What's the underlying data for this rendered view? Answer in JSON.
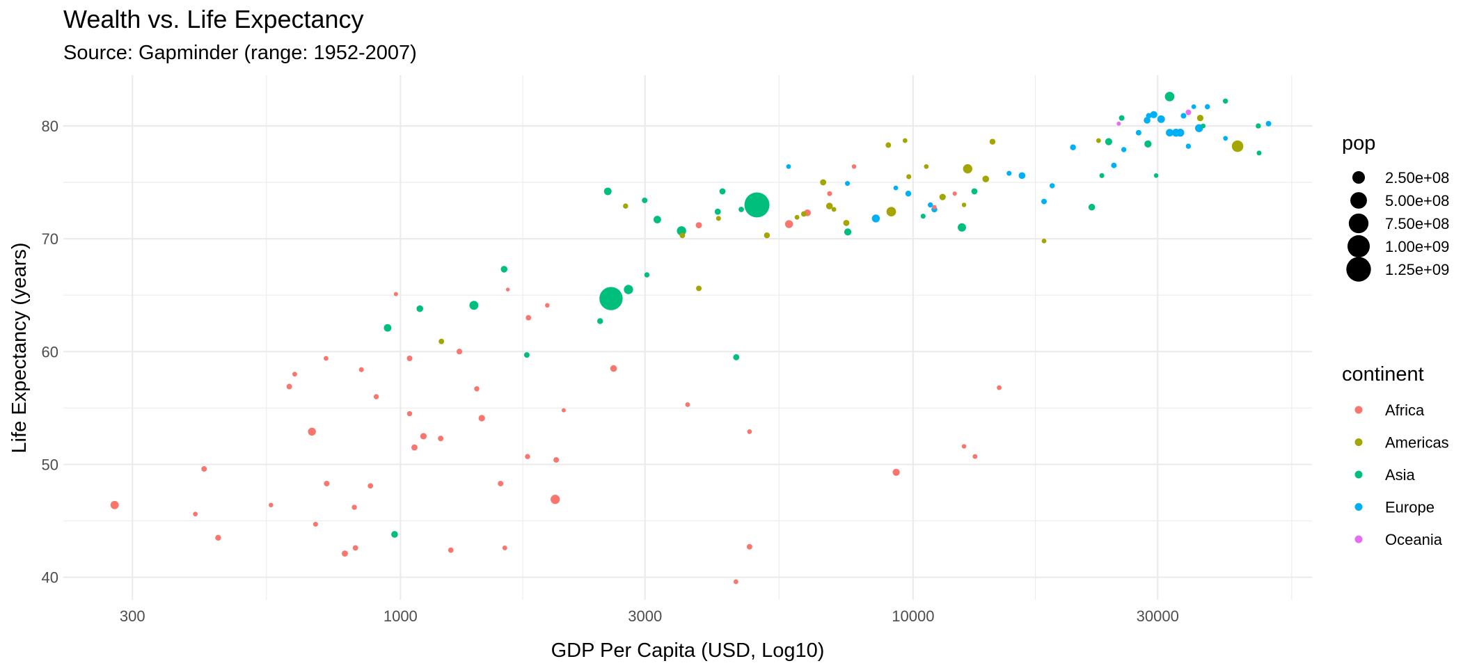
{
  "chart_data": {
    "type": "scatter",
    "title": "Wealth vs. Life Expectancy",
    "subtitle": "Source: Gapminder (range: 1952-2007)",
    "xlabel": "GDP Per Capita (USD, Log10)",
    "ylabel": "Life Expectancy (years)",
    "x_scale": "log10",
    "xlim": [
      220,
      60000
    ],
    "ylim": [
      38,
      84.5
    ],
    "x_ticks": [
      300,
      1000,
      3000,
      10000,
      30000
    ],
    "x_tick_labels": [
      "300",
      "1000",
      "3000",
      "10000",
      "30000"
    ],
    "y_ticks": [
      40,
      50,
      60,
      70,
      80
    ],
    "y_tick_labels": [
      "40",
      "50",
      "60",
      "70",
      "80"
    ],
    "grid": true,
    "legend_position": "right",
    "size_legend": {
      "title": "pop",
      "values": [
        250000000,
        500000000,
        750000000,
        1000000000,
        1250000000
      ],
      "labels": [
        "2.50e+08",
        "5.00e+08",
        "7.50e+08",
        "1.00e+09",
        "1.25e+09"
      ]
    },
    "color_legend": {
      "title": "continent",
      "entries": [
        {
          "name": "Africa",
          "color": "#F8766D"
        },
        {
          "name": "Americas",
          "color": "#A3A500"
        },
        {
          "name": "Asia",
          "color": "#00BF7D"
        },
        {
          "name": "Europe",
          "color": "#00B0F6"
        },
        {
          "name": "Oceania",
          "color": "#E76BF3"
        }
      ]
    },
    "series": [
      {
        "name": "Africa",
        "color": "#F8766D",
        "points": [
          [
            277,
            46.4,
            80000000
          ],
          [
            414,
            49.6,
            20000000
          ],
          [
            398,
            45.6,
            10000000
          ],
          [
            441,
            43.5,
            25000000
          ],
          [
            559,
            46.4,
            8000000
          ],
          [
            607,
            56.9,
            20000000
          ],
          [
            622,
            58.0,
            10000000
          ],
          [
            672,
            52.9,
            70000000
          ],
          [
            683,
            44.7,
            12000000
          ],
          [
            716,
            59.4,
            10000000
          ],
          [
            718,
            48.3,
            20000000
          ],
          [
            779,
            42.1,
            30000000
          ],
          [
            817,
            42.6,
            18000000
          ],
          [
            813,
            46.2,
            15000000
          ],
          [
            839,
            58.4,
            12000000
          ],
          [
            874,
            48.1,
            18000000
          ],
          [
            897,
            56.0,
            15000000
          ],
          [
            980,
            65.1,
            5000000
          ],
          [
            1042,
            59.4,
            20000000
          ],
          [
            1042,
            54.5,
            15000000
          ],
          [
            1065,
            51.5,
            30000000
          ],
          [
            1109,
            52.5,
            35000000
          ],
          [
            1198,
            52.3,
            20000000
          ],
          [
            1254,
            42.4,
            18000000
          ],
          [
            1303,
            60.0,
            22000000
          ],
          [
            1409,
            56.7,
            15000000
          ],
          [
            1441,
            54.1,
            35000000
          ],
          [
            1568,
            48.3,
            20000000
          ],
          [
            1598,
            42.6,
            10000000
          ],
          [
            1620,
            65.5,
            3000000
          ],
          [
            1777,
            63.0,
            18000000
          ],
          [
            1770,
            50.7,
            15000000
          ],
          [
            1934,
            64.1,
            8000000
          ],
          [
            2004,
            46.9,
            110000000
          ],
          [
            2013,
            50.4,
            20000000
          ],
          [
            2082,
            54.8,
            5000000
          ],
          [
            2605,
            58.5,
            40000000
          ],
          [
            3632,
            55.3,
            10000000
          ],
          [
            3820,
            71.2,
            30000000
          ],
          [
            4797,
            52.9,
            10000000
          ],
          [
            4513,
            39.6,
            10000000
          ],
          [
            4797,
            42.7,
            20000000
          ],
          [
            5728,
            71.3,
            70000000
          ],
          [
            6223,
            72.3,
            40000000
          ],
          [
            6873,
            74.0,
            12000000
          ],
          [
            7670,
            76.4,
            8000000
          ],
          [
            9269,
            49.3,
            50000000
          ],
          [
            11003,
            72.8,
            7000000
          ],
          [
            12057,
            74.0,
            6000000
          ],
          [
            12570,
            51.6,
            8000000
          ],
          [
            13206,
            50.7,
            10000000
          ],
          [
            14722,
            56.8,
            10000000
          ]
        ]
      },
      {
        "name": "Americas",
        "color": "#A3A500",
        "points": [
          [
            1202,
            60.9,
            20000000
          ],
          [
            2749,
            72.9,
            15000000
          ],
          [
            3548,
            70.3,
            20000000
          ],
          [
            3820,
            65.6,
            20000000
          ],
          [
            4173,
            71.8,
            12000000
          ],
          [
            5186,
            70.3,
            25000000
          ],
          [
            5937,
            71.9,
            10000000
          ],
          [
            6123,
            72.2,
            20000000
          ],
          [
            6677,
            75.0,
            30000000
          ],
          [
            6868,
            72.9,
            40000000
          ],
          [
            7008,
            72.6,
            10000000
          ],
          [
            7409,
            71.4,
            30000000
          ],
          [
            8948,
            78.3,
            20000000
          ],
          [
            9066,
            72.4,
            120000000
          ],
          [
            9646,
            78.7,
            10000000
          ],
          [
            9809,
            75.5,
            12000000
          ],
          [
            10611,
            76.4,
            10000000
          ],
          [
            11416,
            73.7,
            35000000
          ],
          [
            12779,
            76.2,
            110000000
          ],
          [
            12570,
            73.0,
            8000000
          ],
          [
            13858,
            75.3,
            40000000
          ],
          [
            14286,
            78.6,
            25000000
          ],
          [
            18008,
            69.8,
            10000000
          ],
          [
            23002,
            78.7,
            10000000
          ],
          [
            36319,
            80.7,
            35000000
          ],
          [
            42952,
            78.2,
            200000000
          ]
        ]
      },
      {
        "name": "Asia",
        "color": "#00BF7D",
        "points": [
          [
            944,
            62.1,
            60000000
          ],
          [
            974,
            43.8,
            40000000
          ],
          [
            1091,
            63.8,
            40000000
          ],
          [
            1391,
            64.1,
            100000000
          ],
          [
            1593,
            67.3,
            40000000
          ],
          [
            1764,
            59.7,
            20000000
          ],
          [
            2452,
            62.7,
            25000000
          ],
          [
            2575,
            64.7,
            1100000000
          ],
          [
            2538,
            74.2,
            60000000
          ],
          [
            2785,
            65.5,
            110000000
          ],
          [
            3025,
            66.8,
            15000000
          ],
          [
            2995,
            73.4,
            20000000
          ],
          [
            3170,
            71.7,
            60000000
          ],
          [
            3534,
            70.7,
            110000000
          ],
          [
            4159,
            72.4,
            30000000
          ],
          [
            4248,
            74.2,
            30000000
          ],
          [
            4519,
            59.5,
            30000000
          ],
          [
            4622,
            72.6,
            18000000
          ],
          [
            4959,
            73.0,
            1300000000
          ],
          [
            7458,
            70.6,
            50000000
          ],
          [
            10461,
            72.0,
            12000000
          ],
          [
            12451,
            71.0,
            80000000
          ],
          [
            13172,
            74.2,
            30000000
          ],
          [
            22316,
            72.8,
            40000000
          ],
          [
            23348,
            75.6,
            12000000
          ],
          [
            24073,
            78.6,
            50000000
          ],
          [
            25523,
            80.7,
            20000000
          ],
          [
            28718,
            78.4,
            50000000
          ],
          [
            29796,
            75.6,
            8000000
          ],
          [
            31656,
            82.6,
            120000000
          ],
          [
            36797,
            80.0,
            10000000
          ],
          [
            40676,
            82.2,
            15000000
          ],
          [
            47143,
            80.0,
            15000000
          ],
          [
            47306,
            77.6,
            12000000
          ]
        ]
      },
      {
        "name": "Europe",
        "color": "#00B0F6",
        "points": [
          [
            5716,
            76.4,
            10000000
          ],
          [
            7446,
            74.9,
            12000000
          ],
          [
            8459,
            71.8,
            70000000
          ],
          [
            9253,
            74.5,
            10000000
          ],
          [
            9787,
            74.0,
            25000000
          ],
          [
            10808,
            73.0,
            15000000
          ],
          [
            11002,
            72.6,
            25000000
          ],
          [
            15390,
            75.8,
            12000000
          ],
          [
            16310,
            75.6,
            40000000
          ],
          [
            18008,
            73.3,
            20000000
          ],
          [
            18678,
            74.7,
            15000000
          ],
          [
            20509,
            78.1,
            25000000
          ],
          [
            24643,
            76.5,
            20000000
          ],
          [
            25768,
            77.9,
            15000000
          ],
          [
            27538,
            79.4,
            20000000
          ],
          [
            28604,
            80.5,
            40000000
          ],
          [
            28829,
            80.9,
            20000000
          ],
          [
            29478,
            81.0,
            50000000
          ],
          [
            30470,
            80.6,
            60000000
          ],
          [
            31660,
            79.4,
            60000000
          ],
          [
            32571,
            79.4,
            70000000
          ],
          [
            33207,
            79.4,
            70000000
          ],
          [
            33692,
            80.9,
            20000000
          ],
          [
            34435,
            78.2,
            15000000
          ],
          [
            35278,
            81.7,
            10000000
          ],
          [
            36126,
            79.8,
            70000000
          ],
          [
            36180,
            79.8,
            40000000
          ],
          [
            37506,
            81.7,
            15000000
          ],
          [
            40676,
            78.9,
            10000000
          ],
          [
            49357,
            80.2,
            20000000
          ]
        ]
      },
      {
        "name": "Oceania",
        "color": "#E76BF3",
        "points": [
          [
            25185,
            80.2,
            5000000
          ],
          [
            34435,
            81.2,
            20000000
          ]
        ]
      }
    ]
  }
}
